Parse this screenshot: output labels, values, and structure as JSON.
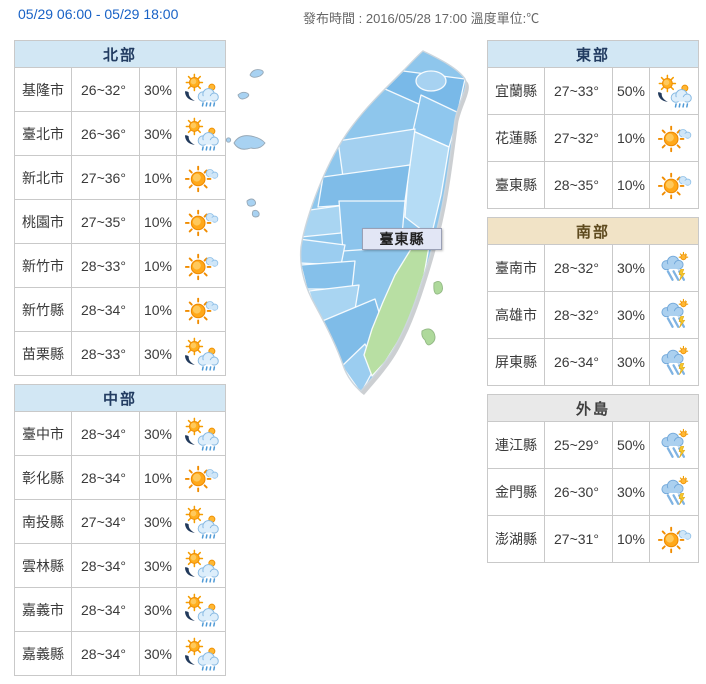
{
  "header": {
    "period": "05/29 06:00 - 05/29 18:00",
    "published": "發布時間 : 2016/05/28 17:00 溫度單位:℃"
  },
  "map": {
    "tooltip": "臺東縣"
  },
  "colors": {
    "period_text": "#1862c6",
    "header_blue_bg": "#d2e7f4",
    "header_tan_bg": "#f1e3c6",
    "header_gray_bg": "#e9e9e9",
    "table_border": "#c9c9c9",
    "map_green": "#b8dfa3",
    "map_blue": "#8ec6ec"
  },
  "icon_legend": {
    "sun-rain": "sun with rain cloud and showers",
    "mostly-sunny": "sunny with small cloud",
    "thunder-rain": "cloud with thunderstorm rain"
  },
  "regions": [
    {
      "id": "north",
      "title": "北部",
      "theme": "blue",
      "position": "left",
      "rows": [
        {
          "city": "基隆市",
          "temp": "26~32°",
          "pop": "30%",
          "icon": "sun-rain"
        },
        {
          "city": "臺北市",
          "temp": "26~36°",
          "pop": "30%",
          "icon": "sun-rain"
        },
        {
          "city": "新北市",
          "temp": "27~36°",
          "pop": "10%",
          "icon": "mostly-sunny"
        },
        {
          "city": "桃園市",
          "temp": "27~35°",
          "pop": "10%",
          "icon": "mostly-sunny"
        },
        {
          "city": "新竹市",
          "temp": "28~33°",
          "pop": "10%",
          "icon": "mostly-sunny"
        },
        {
          "city": "新竹縣",
          "temp": "28~34°",
          "pop": "10%",
          "icon": "mostly-sunny"
        },
        {
          "city": "苗栗縣",
          "temp": "28~33°",
          "pop": "30%",
          "icon": "sun-rain"
        }
      ]
    },
    {
      "id": "central",
      "title": "中部",
      "theme": "blue",
      "position": "left",
      "rows": [
        {
          "city": "臺中市",
          "temp": "28~34°",
          "pop": "30%",
          "icon": "sun-rain"
        },
        {
          "city": "彰化縣",
          "temp": "28~34°",
          "pop": "10%",
          "icon": "mostly-sunny"
        },
        {
          "city": "南投縣",
          "temp": "27~34°",
          "pop": "30%",
          "icon": "sun-rain"
        },
        {
          "city": "雲林縣",
          "temp": "28~34°",
          "pop": "30%",
          "icon": "sun-rain"
        },
        {
          "city": "嘉義市",
          "temp": "28~34°",
          "pop": "30%",
          "icon": "sun-rain"
        },
        {
          "city": "嘉義縣",
          "temp": "28~34°",
          "pop": "30%",
          "icon": "sun-rain"
        }
      ]
    },
    {
      "id": "east",
      "title": "東部",
      "theme": "blue",
      "position": "right",
      "rows": [
        {
          "city": "宜蘭縣",
          "temp": "27~33°",
          "pop": "50%",
          "icon": "sun-rain"
        },
        {
          "city": "花蓮縣",
          "temp": "27~32°",
          "pop": "10%",
          "icon": "mostly-sunny"
        },
        {
          "city": "臺東縣",
          "temp": "28~35°",
          "pop": "10%",
          "icon": "mostly-sunny"
        }
      ]
    },
    {
      "id": "south",
      "title": "南部",
      "theme": "tan",
      "position": "right",
      "rows": [
        {
          "city": "臺南市",
          "temp": "28~32°",
          "pop": "30%",
          "icon": "thunder-rain"
        },
        {
          "city": "高雄市",
          "temp": "28~32°",
          "pop": "30%",
          "icon": "thunder-rain"
        },
        {
          "city": "屏東縣",
          "temp": "26~34°",
          "pop": "30%",
          "icon": "thunder-rain"
        }
      ]
    },
    {
      "id": "islands",
      "title": "外島",
      "theme": "gray",
      "position": "right",
      "rows": [
        {
          "city": "連江縣",
          "temp": "25~29°",
          "pop": "50%",
          "icon": "thunder-rain"
        },
        {
          "city": "金門縣",
          "temp": "26~30°",
          "pop": "30%",
          "icon": "thunder-rain"
        },
        {
          "city": "澎湖縣",
          "temp": "27~31°",
          "pop": "10%",
          "icon": "mostly-sunny"
        }
      ]
    }
  ]
}
